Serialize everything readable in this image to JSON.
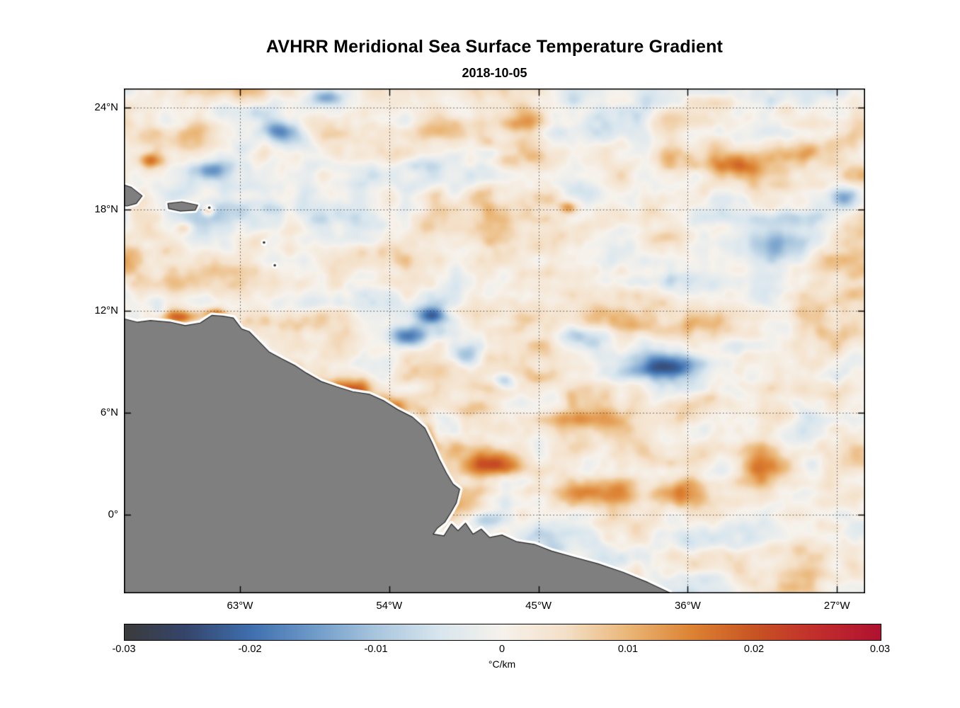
{
  "chart_data": {
    "type": "heatmap",
    "title": "AVHRR Meridional Sea Surface Temperature Gradient",
    "subtitle": "2018-10-05",
    "xlim": [
      -70.0,
      -25.3
    ],
    "ylim": [
      -4.64,
      25.13
    ],
    "x_ticks": [
      {
        "value": -63,
        "label": "63°W"
      },
      {
        "value": -54,
        "label": "54°W"
      },
      {
        "value": -45,
        "label": "45°W"
      },
      {
        "value": -36,
        "label": "36°W"
      },
      {
        "value": -27,
        "label": "27°W"
      }
    ],
    "y_ticks": [
      {
        "value": 24,
        "label": "24°N"
      },
      {
        "value": 18,
        "label": "18°N"
      },
      {
        "value": 12,
        "label": "12°N"
      },
      {
        "value": 6,
        "label": "6°N"
      },
      {
        "value": 0,
        "label": "0°"
      }
    ],
    "grid": {
      "style": "dotted",
      "color": "#333333"
    },
    "land_color": "#7f7f7f",
    "coast_gap_color": "#ffffff",
    "colorbar": {
      "label": "°C/km",
      "min": -0.03,
      "max": 0.03,
      "ticks": [
        {
          "value": -0.03,
          "label": "-0.03"
        },
        {
          "value": -0.02,
          "label": "-0.02"
        },
        {
          "value": -0.01,
          "label": "-0.01"
        },
        {
          "value": 0,
          "label": "0"
        },
        {
          "value": 0.01,
          "label": "0.01"
        },
        {
          "value": 0.02,
          "label": "0.02"
        },
        {
          "value": 0.03,
          "label": "0.03"
        }
      ],
      "stops": [
        {
          "t": 0.0,
          "color": "#3b3b3b"
        },
        {
          "t": 0.08,
          "color": "#35456b"
        },
        {
          "t": 0.167,
          "color": "#3f6fae"
        },
        {
          "t": 0.25,
          "color": "#6f9bc9"
        },
        {
          "t": 0.333,
          "color": "#a9c6de"
        },
        {
          "t": 0.417,
          "color": "#d9e6ee"
        },
        {
          "t": 0.5,
          "color": "#f6f2ec"
        },
        {
          "t": 0.583,
          "color": "#f4e0c8"
        },
        {
          "t": 0.667,
          "color": "#eab676"
        },
        {
          "t": 0.75,
          "color": "#dd8333"
        },
        {
          "t": 0.833,
          "color": "#c85423"
        },
        {
          "t": 0.917,
          "color": "#c22d2d"
        },
        {
          "t": 1.0,
          "color": "#b01230"
        }
      ]
    },
    "coastline": [
      [
        -70.0,
        11.55
      ],
      [
        -69.2,
        11.35
      ],
      [
        -68.4,
        11.45
      ],
      [
        -67.2,
        11.35
      ],
      [
        -66.3,
        11.15
      ],
      [
        -65.4,
        11.3
      ],
      [
        -64.7,
        11.75
      ],
      [
        -64.0,
        11.7
      ],
      [
        -63.4,
        11.6
      ],
      [
        -62.9,
        10.95
      ],
      [
        -62.45,
        10.8
      ],
      [
        -61.9,
        10.25
      ],
      [
        -61.25,
        9.6
      ],
      [
        -60.5,
        9.2
      ],
      [
        -59.7,
        8.8
      ],
      [
        -59.0,
        8.35
      ],
      [
        -58.1,
        7.85
      ],
      [
        -57.2,
        7.55
      ],
      [
        -56.2,
        7.25
      ],
      [
        -55.2,
        7.1
      ],
      [
        -54.3,
        6.7
      ],
      [
        -53.5,
        6.2
      ],
      [
        -52.6,
        5.75
      ],
      [
        -51.85,
        5.1
      ],
      [
        -51.4,
        4.2
      ],
      [
        -51.0,
        3.3
      ],
      [
        -50.55,
        2.45
      ],
      [
        -50.15,
        1.8
      ],
      [
        -49.75,
        1.5
      ],
      [
        -49.95,
        0.7
      ],
      [
        -50.3,
        0.1
      ],
      [
        -50.65,
        -0.45
      ],
      [
        -51.1,
        -0.8
      ],
      [
        -51.35,
        -1.15
      ],
      [
        -50.7,
        -1.25
      ],
      [
        -50.25,
        -0.55
      ],
      [
        -49.85,
        -0.95
      ],
      [
        -49.4,
        -0.5
      ],
      [
        -48.95,
        -1.15
      ],
      [
        -48.45,
        -0.85
      ],
      [
        -47.95,
        -1.35
      ],
      [
        -47.2,
        -1.2
      ],
      [
        -46.3,
        -1.6
      ],
      [
        -45.25,
        -1.75
      ],
      [
        -44.2,
        -2.15
      ],
      [
        -42.9,
        -2.5
      ],
      [
        -41.4,
        -2.9
      ],
      [
        -39.9,
        -3.4
      ],
      [
        -38.4,
        -4.0
      ],
      [
        -37.1,
        -4.6
      ],
      [
        -36.8,
        -5.3
      ]
    ],
    "land_close": [
      [
        -70.8,
        -5.6
      ],
      [
        -70.8,
        11.55
      ]
    ],
    "islands": [
      {
        "name": "hispaniola",
        "points": [
          [
            -70.5,
            19.6
          ],
          [
            -69.55,
            19.3
          ],
          [
            -68.9,
            18.8
          ],
          [
            -69.25,
            18.35
          ],
          [
            -69.8,
            18.2
          ],
          [
            -70.5,
            18.3
          ]
        ]
      },
      {
        "name": "puerto-rico",
        "points": [
          [
            -67.35,
            18.35
          ],
          [
            -66.5,
            18.45
          ],
          [
            -65.55,
            18.25
          ],
          [
            -65.7,
            17.95
          ],
          [
            -66.6,
            17.9
          ],
          [
            -67.3,
            18.05
          ]
        ]
      }
    ],
    "islets": [
      [
        -64.85,
        18.1
      ],
      [
        -61.55,
        16.05
      ],
      [
        -60.9,
        14.7
      ]
    ],
    "field_background": {
      "bias": 0.0015,
      "noise_amp_large": 0.0095,
      "noise_amp_streak": 0.0065,
      "noise_amp_fine": 0.0035
    },
    "field_features": [
      {
        "lon": -56.6,
        "lat": 7.2,
        "sx": 2.0,
        "sy": 0.8,
        "amp": 0.02
      },
      {
        "lon": -53.9,
        "lat": 6.3,
        "sx": 1.3,
        "sy": 0.6,
        "amp": 0.018
      },
      {
        "lon": -51.7,
        "lat": 4.7,
        "sx": 0.6,
        "sy": 1.0,
        "amp": 0.012
      },
      {
        "lon": -47.3,
        "lat": 3.0,
        "sx": 2.0,
        "sy": 0.6,
        "amp": 0.018
      },
      {
        "lon": -42.5,
        "lat": 1.3,
        "sx": 2.2,
        "sy": 0.9,
        "amp": 0.013
      },
      {
        "lon": -36.2,
        "lat": 1.2,
        "sx": 1.8,
        "sy": 0.9,
        "amp": 0.014
      },
      {
        "lon": -31.4,
        "lat": 2.8,
        "sx": 1.6,
        "sy": 0.8,
        "amp": 0.013
      },
      {
        "lon": -66.8,
        "lat": 11.6,
        "sx": 1.3,
        "sy": 0.45,
        "amp": 0.02
      },
      {
        "lon": -64.4,
        "lat": 11.85,
        "sx": 0.8,
        "sy": 0.35,
        "amp": 0.016
      },
      {
        "lon": -68.4,
        "lat": 20.9,
        "sx": 0.8,
        "sy": 0.5,
        "amp": 0.016
      },
      {
        "lon": -64.9,
        "lat": 17.95,
        "sx": 0.35,
        "sy": 0.3,
        "amp": 0.014
      },
      {
        "lon": -66.4,
        "lat": 16.9,
        "sx": 0.5,
        "sy": 0.35,
        "amp": 0.01
      },
      {
        "lon": -33.0,
        "lat": 20.6,
        "sx": 3.0,
        "sy": 0.8,
        "amp": 0.011
      },
      {
        "lon": -28.8,
        "lat": 21.4,
        "sx": 2.0,
        "sy": 0.6,
        "amp": 0.011
      },
      {
        "lon": -43.3,
        "lat": 18.1,
        "sx": 0.5,
        "sy": 0.4,
        "amp": 0.012
      },
      {
        "lon": -41.5,
        "lat": 5.7,
        "sx": 2.5,
        "sy": 0.7,
        "amp": 0.01
      },
      {
        "lon": -52.9,
        "lat": 10.5,
        "sx": 1.0,
        "sy": 0.6,
        "amp": -0.02
      },
      {
        "lon": -51.4,
        "lat": 11.75,
        "sx": 0.8,
        "sy": 0.5,
        "amp": -0.016
      },
      {
        "lon": -37.6,
        "lat": 8.7,
        "sx": 2.2,
        "sy": 0.8,
        "amp": -0.018
      },
      {
        "lon": -33.4,
        "lat": 9.9,
        "sx": 1.6,
        "sy": 0.6,
        "amp": -0.012
      },
      {
        "lon": -42.6,
        "lat": 10.6,
        "sx": 1.8,
        "sy": 0.7,
        "amp": -0.01
      },
      {
        "lon": -57.8,
        "lat": 24.6,
        "sx": 1.0,
        "sy": 0.5,
        "amp": -0.014
      },
      {
        "lon": -60.5,
        "lat": 22.5,
        "sx": 1.0,
        "sy": 0.6,
        "amp": -0.012
      },
      {
        "lon": -64.8,
        "lat": 20.3,
        "sx": 1.0,
        "sy": 0.5,
        "amp": -0.012
      },
      {
        "lon": -26.5,
        "lat": 18.7,
        "sx": 0.8,
        "sy": 0.6,
        "amp": -0.016
      },
      {
        "lon": -30.4,
        "lat": 15.6,
        "sx": 1.6,
        "sy": 0.9,
        "amp": -0.01
      },
      {
        "lon": -49.5,
        "lat": 9.35,
        "sx": 0.8,
        "sy": 0.6,
        "amp": -0.012
      },
      {
        "lon": -47.0,
        "lat": 7.8,
        "sx": 0.7,
        "sy": 0.5,
        "amp": -0.009
      },
      {
        "lon": -48.3,
        "lat": -0.3,
        "sx": 1.3,
        "sy": 0.5,
        "amp": -0.012
      },
      {
        "lon": -35.2,
        "lat": 13.5,
        "sx": 1.5,
        "sy": 0.8,
        "amp": -0.008
      }
    ]
  }
}
